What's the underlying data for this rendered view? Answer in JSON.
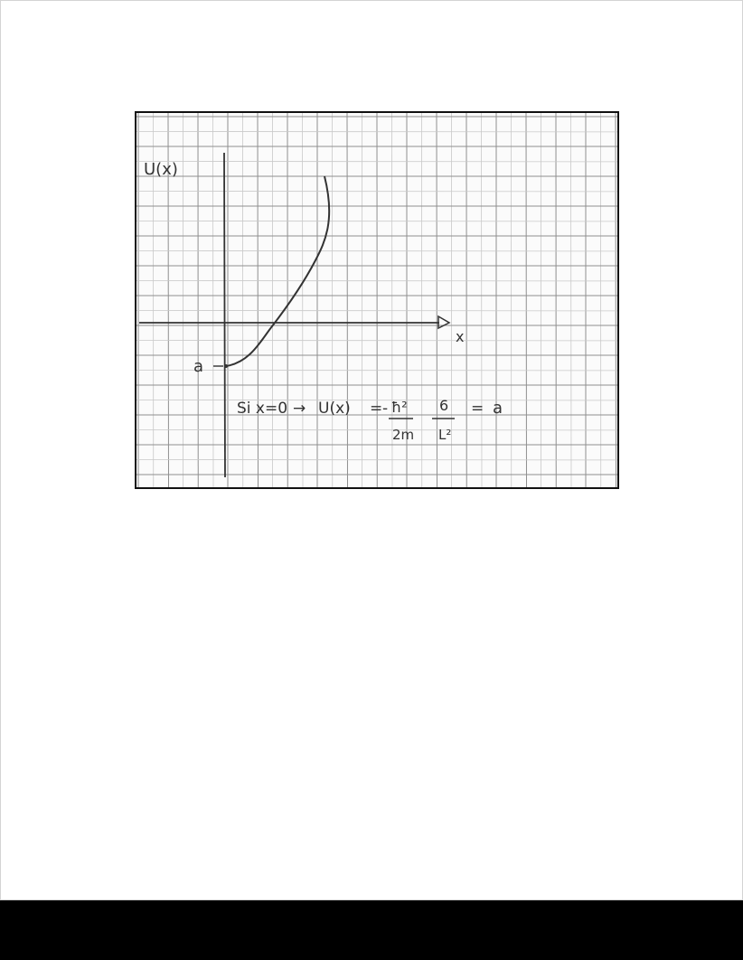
{
  "document": {
    "figure": {
      "description_visible": false,
      "y_axis_label": "U(x)",
      "x_axis_label": "x",
      "intercept_label": "a",
      "equation": {
        "prefix": "Si x=0",
        "arrow": "→",
        "lhs": "U(x)",
        "equals1": "=",
        "sign": "-",
        "hbar_numerator": "ħ²",
        "hbar_denominator": "2m",
        "six_numerator": "6",
        "L_denominator": "L²",
        "equals2": "=",
        "rhs": "a"
      }
    }
  },
  "colors": {
    "paper": "#fbfbfb",
    "grid_major": "#8f8f8f",
    "grid_minor": "#c9c9c9",
    "ink": "#333333",
    "frame": "#111111",
    "footer": "#000000"
  }
}
